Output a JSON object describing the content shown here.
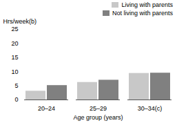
{
  "chart_data": {
    "type": "bar",
    "categories": [
      "20–24",
      "25–29",
      "30–34(c)"
    ],
    "series": [
      {
        "name": "Living with parents",
        "color": "#c8c8c8",
        "values": [
          3.1,
          6.2,
          9.4
        ]
      },
      {
        "name": "Not living with parents",
        "color": "#808080",
        "values": [
          5.1,
          7.0,
          9.5
        ]
      }
    ],
    "xlabel": "Age group (years)",
    "ylabel": "Hrs/week(b)",
    "ylim": [
      0,
      25
    ],
    "yticks": [
      0,
      5,
      10,
      15,
      20,
      25
    ],
    "legend": "upper right",
    "grid": false
  }
}
